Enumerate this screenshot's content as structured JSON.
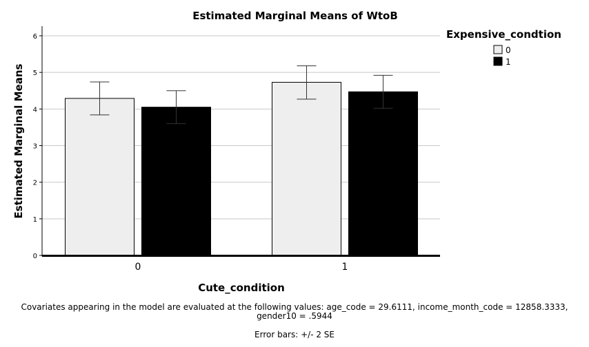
{
  "chart_data": {
    "type": "bar",
    "title": "Estimated Marginal Means of WtoB",
    "xlabel": "Cute_condition",
    "ylabel": "Estimated Marginal Means",
    "categories": [
      "0",
      "1"
    ],
    "ylim": [
      0,
      6.3
    ],
    "yticks": [
      "0",
      "1",
      "2",
      "3",
      "4",
      "5",
      "6"
    ],
    "grid": "horizontal",
    "legend": {
      "title": "Expensive_condtion",
      "placement": "top-right"
    },
    "series": [
      {
        "name": "0",
        "color": "#eeeeee",
        "values": [
          4.29,
          4.73
        ],
        "error_low": [
          3.84,
          4.27
        ],
        "error_high": [
          4.74,
          5.18
        ]
      },
      {
        "name": "1",
        "color": "#000000",
        "values": [
          4.05,
          4.47
        ],
        "error_low": [
          3.6,
          4.02
        ],
        "error_high": [
          4.5,
          4.92
        ]
      }
    ]
  },
  "footnotes": {
    "covariates_line1": "Covariates appearing in the model are evaluated at the following values: age_code = 29.6111, income_month_code = 12858.3333,",
    "covariates_line2": "gender10 = .5944",
    "error_bars": "Error bars: +/- 2 SE"
  }
}
